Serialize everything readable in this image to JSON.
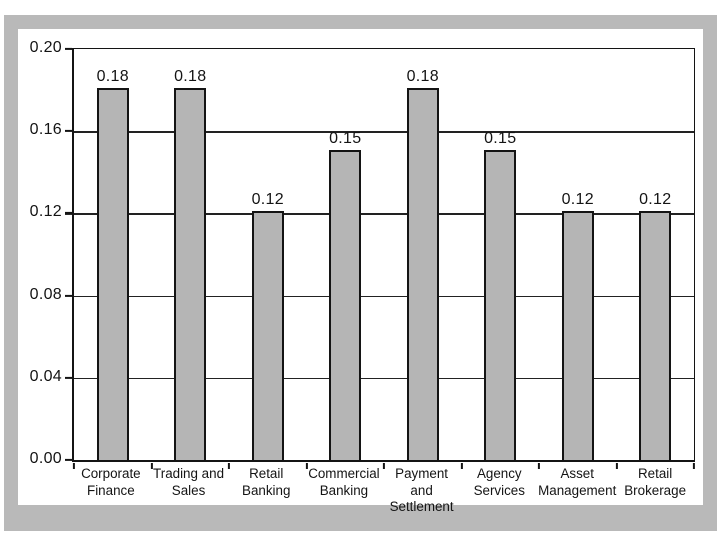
{
  "chart_data": {
    "type": "bar",
    "categories": [
      "Corporate\nFinance",
      "Trading and\nSales",
      "Retail\nBanking",
      "Commercial\nBanking",
      "Payment and\nSettlement",
      "Agency\nServices",
      "Asset\nManagement",
      "Retail\nBrokerage"
    ],
    "values": [
      0.18,
      0.18,
      0.12,
      0.15,
      0.18,
      0.15,
      0.12,
      0.12
    ],
    "value_labels": [
      "0.18",
      "0.18",
      "0.12",
      "0.15",
      "0.18",
      "0.15",
      "0.12",
      "0.12"
    ],
    "title": "",
    "xlabel": "",
    "ylabel": "",
    "ylim": [
      0,
      0.2
    ],
    "yticks": [
      0.0,
      0.04,
      0.08,
      0.12,
      0.16,
      0.2
    ],
    "ytick_labels_top_to_bottom": [
      "0.20",
      "0.16",
      "0.12",
      "0.08",
      "0.04",
      "0.00"
    ],
    "grid": "horizontal gridlines at each y tick",
    "legend": "none",
    "colors": {
      "bar_fill": "#b5b5b5",
      "bar_border": "#141414",
      "frame_gray": "#b9b9b9",
      "plot_background": "#ffffff",
      "text": "#141414"
    }
  }
}
